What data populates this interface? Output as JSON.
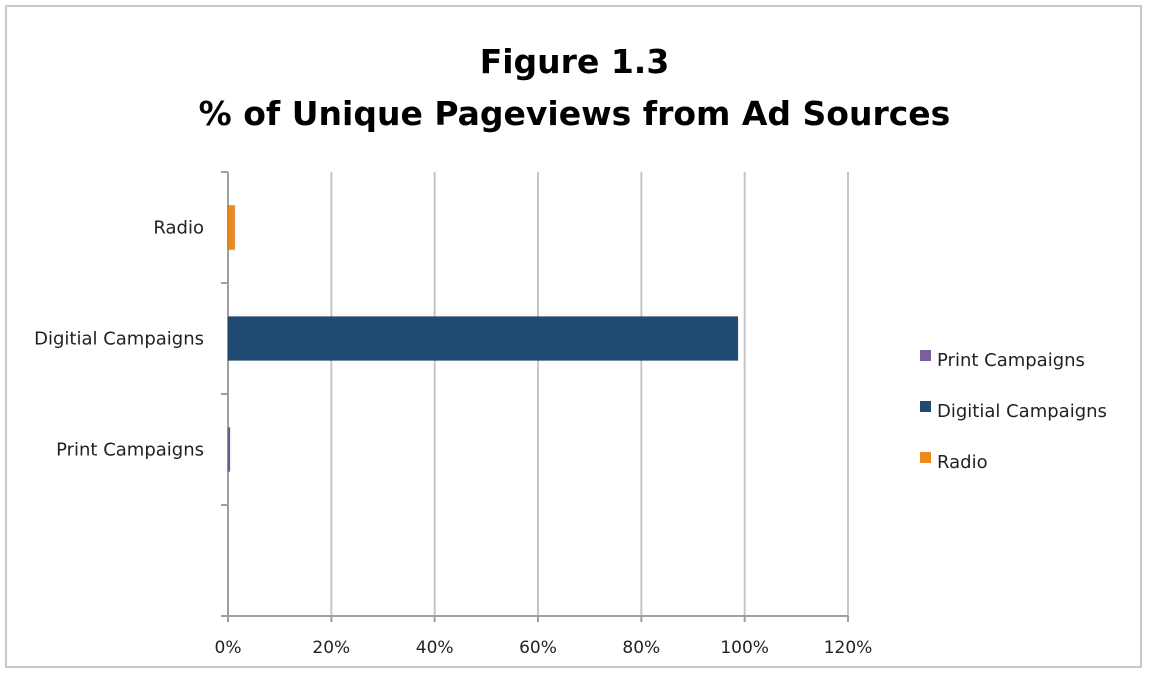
{
  "chart_data": {
    "type": "bar",
    "orientation": "horizontal",
    "title": "Figure 1.3",
    "subtitle": "% of Unique Pageviews from Ad Sources",
    "categories": [
      "Print Campaigns",
      "Digitial Campaigns",
      "Radio"
    ],
    "series": [
      {
        "name": "Print Campaigns",
        "color": "#7b5fa0",
        "values": [
          0.3,
          null,
          null
        ]
      },
      {
        "name": "Digitial Campaigns",
        "color": "#1f4a72",
        "values": [
          null,
          98.7,
          null
        ]
      },
      {
        "name": "Radio",
        "color": "#ee8a1c",
        "values": [
          null,
          null,
          1.3
        ]
      }
    ],
    "xlim": [
      0,
      120
    ],
    "xticks": [
      "0%",
      "20%",
      "40%",
      "60%",
      "80%",
      "100%",
      "120%"
    ],
    "xtick_values": [
      0,
      20,
      40,
      60,
      80,
      100,
      120
    ],
    "grid": "vertical",
    "legend_position": "right",
    "legend": [
      "Print Campaigns",
      "Digitial Campaigns",
      "Radio"
    ]
  }
}
